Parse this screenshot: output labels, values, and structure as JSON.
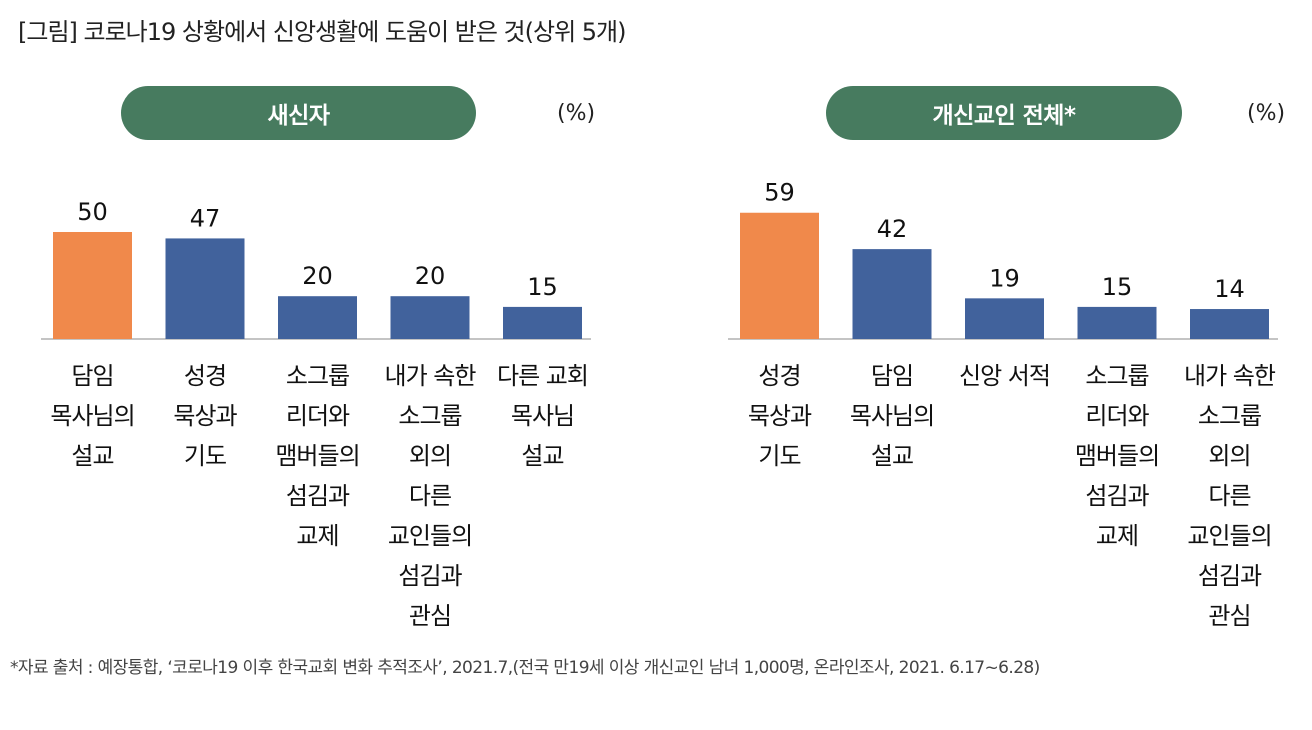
{
  "title": "[그림] 코로나19 상황에서 신앙생활에 도움이 받은 것(상위 5개)",
  "footnote": "*자료 출처 : 예장통합, ‘코로나19 이후 한국교회 변화 추적조사’, 2021.7,(전국 만19세 이상 개신교인 남녀 1,000명, 온라인조사, 2021. 6.17~6.28)",
  "colors": {
    "pill": "#477b5f",
    "highlight": "#f0894b",
    "bar": "#41629c",
    "axis": "#b0b0b0"
  },
  "chart_data": [
    {
      "type": "bar",
      "title": "새신자",
      "unit": "(%)",
      "categories": [
        "담임\n목사님의\n설교",
        "성경\n묵상과\n기도",
        "소그룹\n리더와\n맴버들의\n섬김과\n교제",
        "내가 속한\n소그룹\n외의\n다른\n교인들의\n섬김과\n관심",
        "다른 교회\n목사님\n설교"
      ],
      "values": [
        50,
        47,
        20,
        20,
        15
      ],
      "value_labels": [
        "50",
        "47",
        "20",
        "20",
        "15"
      ],
      "highlight_index": 0,
      "ylim": [
        0,
        60
      ]
    },
    {
      "type": "bar",
      "title": "개신교인 전체*",
      "unit": "(%)",
      "categories": [
        "성경\n묵상과\n기도",
        "담임\n목사님의\n설교",
        "신앙 서적",
        "소그룹\n리더와\n맴버들의\n섬김과\n교제",
        "내가 속한\n소그룹\n외의\n다른\n교인들의\n섬김과\n관심"
      ],
      "values": [
        59,
        42,
        19,
        15,
        14
      ],
      "value_labels": [
        "59",
        "42",
        "19",
        "15",
        "14"
      ],
      "highlight_index": 0,
      "ylim": [
        0,
        60
      ]
    }
  ]
}
